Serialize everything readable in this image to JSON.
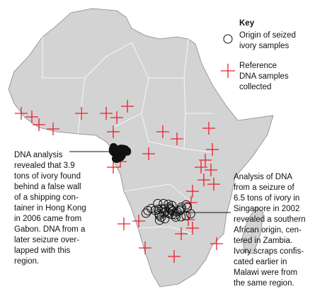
{
  "key": {
    "title": "Key",
    "items": [
      {
        "lines": [
          "Origin of seized",
          "ivory samples"
        ]
      },
      {
        "lines": [
          "Reference",
          "DNA samples",
          "collected"
        ]
      }
    ]
  },
  "annotations": [
    {
      "lines": [
        "DNA analysis",
        "revealed that 3.9",
        "tons of ivory found",
        "behind a false wall",
        "of a shipping con-",
        "tainer in Hong Kong",
        "in 2006 came from",
        "Gabon. DNA from a",
        "later seizure over-",
        "lapped with this",
        "region."
      ]
    },
    {
      "lines": [
        "Analysis of DNA",
        "from a seizure of",
        "6.5 tons of ivory in",
        "Singapore in 2002",
        "revealed a southern",
        "African origin, cen-",
        "tered in Zambia.",
        "Ivory scraps confis-",
        "cated earlier in",
        "Malawi were from",
        "the same region."
      ]
    }
  ]
}
